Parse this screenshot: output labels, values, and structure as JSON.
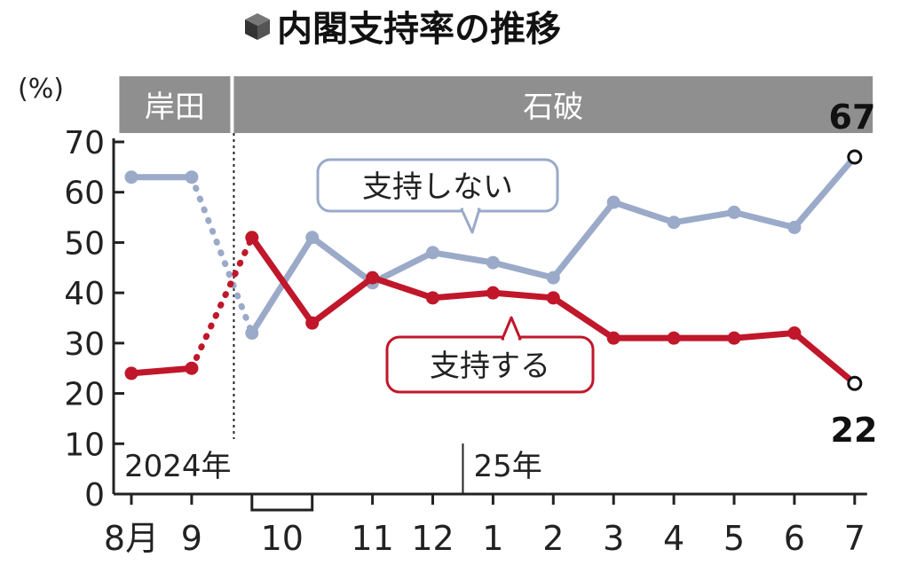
{
  "chart_data": {
    "type": "line",
    "title": "内閣支持率の推移",
    "title_icon": "cube-icon",
    "ylabel": "(%)",
    "ylim": [
      0,
      70
    ],
    "yticks": [
      "0",
      "10",
      "20",
      "30",
      "40",
      "50",
      "60",
      "70"
    ],
    "categories": [
      "8月",
      "9",
      "10a",
      "10b",
      "11",
      "12",
      "1",
      "2",
      "3",
      "4",
      "5",
      "6",
      "7"
    ],
    "tick_labels": [
      {
        "label": "8月",
        "at": 0
      },
      {
        "label": "9",
        "at": 1
      },
      {
        "label": "10",
        "at": 2.5
      },
      {
        "label": "11",
        "at": 4
      },
      {
        "label": "12",
        "at": 5
      },
      {
        "label": "1",
        "at": 6
      },
      {
        "label": "2",
        "at": 7
      },
      {
        "label": "3",
        "at": 8
      },
      {
        "label": "4",
        "at": 9
      },
      {
        "label": "5",
        "at": 10
      },
      {
        "label": "6",
        "at": 11
      },
      {
        "label": "7",
        "at": 12
      }
    ],
    "year_labels": [
      {
        "label": "2024年",
        "at": 0
      },
      {
        "label": "25年",
        "at": 6
      }
    ],
    "eras": [
      {
        "label": "岸田",
        "from": -0.2,
        "to": 1.7
      },
      {
        "label": "石破",
        "from": 1.7,
        "to": 12.3
      }
    ],
    "series": [
      {
        "name": "支持しない",
        "color": "#9aaac8",
        "values": [
          63,
          63,
          32,
          51,
          42,
          48,
          46,
          43,
          58,
          54,
          56,
          53,
          67
        ],
        "last_label": "67"
      },
      {
        "name": "支持する",
        "color": "#c0172a",
        "values": [
          24,
          25,
          51,
          34,
          43,
          39,
          40,
          39,
          31,
          31,
          31,
          32,
          22
        ],
        "last_label": "22"
      }
    ],
    "grid": false,
    "legend": "inline callouts"
  },
  "colors": {
    "axis": "#222222",
    "era_band": "#8f8f8f",
    "era_text": "#ffffff"
  }
}
